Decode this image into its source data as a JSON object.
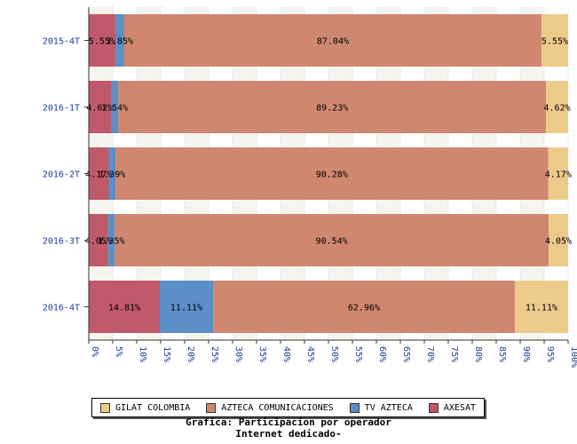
{
  "chart_data": {
    "type": "bar",
    "orientation": "horizontal",
    "stacked": true,
    "categories": [
      "2015-4T",
      "2016-1T",
      "2016-2T",
      "2016-3T",
      "2016-4T"
    ],
    "series": [
      {
        "name": "AXESAT",
        "color": "#c0596a",
        "values": [
          5.55,
          4.62,
          4.17,
          4.05,
          14.81
        ],
        "labels": [
          "5.55%",
          "4.62%",
          "4.17%",
          "4.05%",
          "14.81%"
        ]
      },
      {
        "name": "TV AZTECA",
        "color": "#5b8fc6",
        "values": [
          1.85,
          1.54,
          1.39,
          1.35,
          11.11
        ],
        "labels": [
          "1.85%",
          "1.54%",
          "1.39%",
          "1.35%",
          "11.11%"
        ]
      },
      {
        "name": "AZTECA COMUNICACIONES",
        "color": "#cf8770",
        "values": [
          87.04,
          89.23,
          90.28,
          90.54,
          62.96
        ],
        "labels": [
          "87.04%",
          "89.23%",
          "90.28%",
          "90.54%",
          "62.96%"
        ]
      },
      {
        "name": "GILAT COLOMBIA",
        "color": "#ecca8a",
        "values": [
          5.55,
          4.62,
          4.17,
          4.05,
          11.11
        ],
        "labels": [
          "5.55%",
          "4.62%",
          "4.17%",
          "4.05%",
          "11.11%"
        ]
      }
    ],
    "xlim": [
      0,
      100
    ],
    "xticks": [
      "0%",
      "5%",
      "10%",
      "15%",
      "20%",
      "25%",
      "30%",
      "35%",
      "40%",
      "45%",
      "50%",
      "55%",
      "60%",
      "65%",
      "70%",
      "75%",
      "80%",
      "85%",
      "90%",
      "95%",
      "100%"
    ],
    "legend_position": "bottom",
    "legend_order": [
      "GILAT COLOMBIA",
      "AZTECA COMUNICACIONES",
      "TV AZTECA",
      "AXESAT"
    ],
    "grid": true
  },
  "caption": {
    "line1": "Grafica: Participacion por operador",
    "line2": "Internet dedicado-"
  }
}
